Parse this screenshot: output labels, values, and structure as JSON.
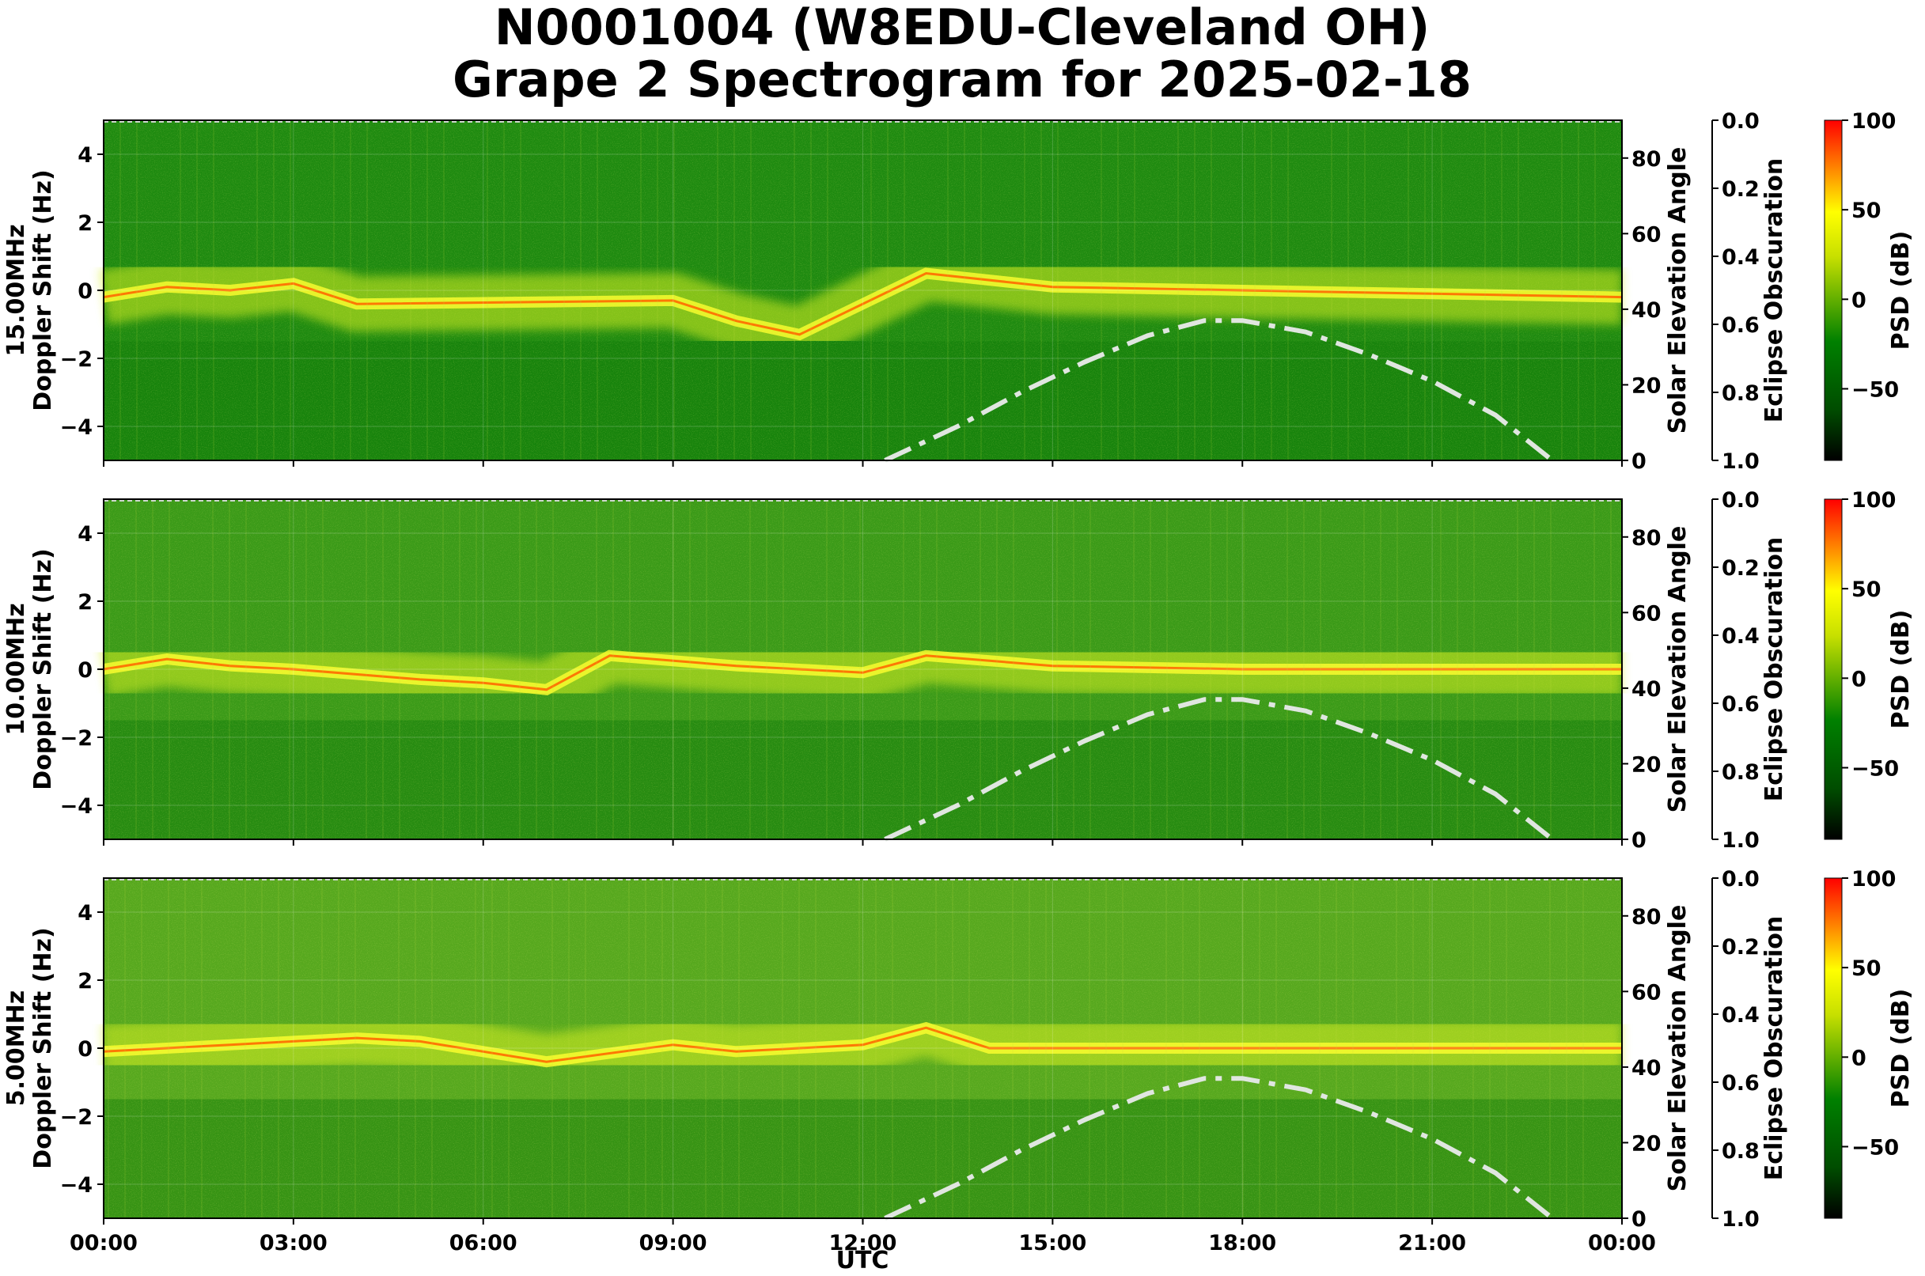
{
  "title": {
    "line1": "N0001004 (W8EDU-Cleveland OH)",
    "line2": "Grape 2 Spectrogram for 2025-02-18"
  },
  "chart_data": {
    "type": "heatmap",
    "colormap": [
      "#000000",
      "#006400",
      "#00a000",
      "#ffff00",
      "#ff0000"
    ],
    "x_axis": {
      "label": "UTC",
      "ticks": [
        "00:00",
        "03:00",
        "06:00",
        "09:00",
        "12:00",
        "15:00",
        "18:00",
        "21:00",
        "00:00"
      ],
      "range_hours": [
        0,
        24
      ]
    },
    "panels": [
      {
        "freq_label": "15.00MHz",
        "ylabel": "Doppler Shift (Hz)",
        "ylim": [
          -5,
          5
        ],
        "yticks": [
          "4",
          "2",
          "0",
          "−2",
          "−4"
        ],
        "carrier_trace": [
          {
            "t": 0,
            "f": -0.2
          },
          {
            "t": 1,
            "f": 0.1
          },
          {
            "t": 2,
            "f": 0.0
          },
          {
            "t": 3,
            "f": 0.2
          },
          {
            "t": 4,
            "f": -0.4
          },
          {
            "t": 9,
            "f": -0.3
          },
          {
            "t": 10,
            "f": -0.9
          },
          {
            "t": 11,
            "f": -1.3
          },
          {
            "t": 13,
            "f": 0.5
          },
          {
            "t": 15,
            "f": 0.1
          },
          {
            "t": 18,
            "f": 0.0
          },
          {
            "t": 21,
            "f": -0.1
          },
          {
            "t": 24,
            "f": -0.2
          }
        ]
      },
      {
        "freq_label": "10.00MHz",
        "ylabel": "Doppler Shift (Hz)",
        "ylim": [
          -5,
          5
        ],
        "yticks": [
          "4",
          "2",
          "0",
          "−2",
          "−4"
        ],
        "carrier_trace": [
          {
            "t": 0,
            "f": 0.0
          },
          {
            "t": 1,
            "f": 0.3
          },
          {
            "t": 2,
            "f": 0.1
          },
          {
            "t": 3,
            "f": 0.0
          },
          {
            "t": 5,
            "f": -0.3
          },
          {
            "t": 6,
            "f": -0.4
          },
          {
            "t": 7,
            "f": -0.6
          },
          {
            "t": 8,
            "f": 0.4
          },
          {
            "t": 10,
            "f": 0.1
          },
          {
            "t": 12,
            "f": -0.1
          },
          {
            "t": 13,
            "f": 0.4
          },
          {
            "t": 15,
            "f": 0.1
          },
          {
            "t": 18,
            "f": 0.0
          },
          {
            "t": 24,
            "f": 0.0
          }
        ]
      },
      {
        "freq_label": "5.00MHz",
        "ylabel": "Doppler Shift (Hz)",
        "ylim": [
          -5,
          5
        ],
        "yticks": [
          "4",
          "2",
          "0",
          "−2",
          "−4"
        ],
        "carrier_trace": [
          {
            "t": 0,
            "f": -0.1
          },
          {
            "t": 2,
            "f": 0.1
          },
          {
            "t": 4,
            "f": 0.3
          },
          {
            "t": 5,
            "f": 0.2
          },
          {
            "t": 7,
            "f": -0.4
          },
          {
            "t": 9,
            "f": 0.1
          },
          {
            "t": 10,
            "f": -0.1
          },
          {
            "t": 12,
            "f": 0.1
          },
          {
            "t": 13,
            "f": 0.6
          },
          {
            "t": 14,
            "f": 0.0
          },
          {
            "t": 24,
            "f": 0.0
          }
        ]
      }
    ],
    "solar_elevation": {
      "label": "Solar Elevation Angle",
      "ylim": [
        0,
        90
      ],
      "yticks": [
        "80",
        "60",
        "40",
        "20",
        "0"
      ],
      "style": "dash-dot",
      "color": "#e0e6e0",
      "points": [
        {
          "t": 12.35,
          "deg": 0
        },
        {
          "t": 13.5,
          "deg": 9
        },
        {
          "t": 14.5,
          "deg": 18
        },
        {
          "t": 15.5,
          "deg": 26
        },
        {
          "t": 16.5,
          "deg": 33
        },
        {
          "t": 17.4,
          "deg": 37
        },
        {
          "t": 18.0,
          "deg": 37
        },
        {
          "t": 19.0,
          "deg": 34
        },
        {
          "t": 20.0,
          "deg": 28
        },
        {
          "t": 21.0,
          "deg": 21
        },
        {
          "t": 22.0,
          "deg": 12
        },
        {
          "t": 22.9,
          "deg": 0
        }
      ]
    },
    "eclipse": {
      "label": "Eclipse Obscuration",
      "ylim": [
        0,
        1
      ],
      "yticks": [
        "0.0",
        "0.2",
        "0.4",
        "0.6",
        "0.8",
        "1.0"
      ]
    },
    "colorbar": {
      "label": "PSD (dB)",
      "range": [
        -90,
        100
      ],
      "ticks": [
        "100",
        "50",
        "0",
        "−50"
      ]
    }
  }
}
